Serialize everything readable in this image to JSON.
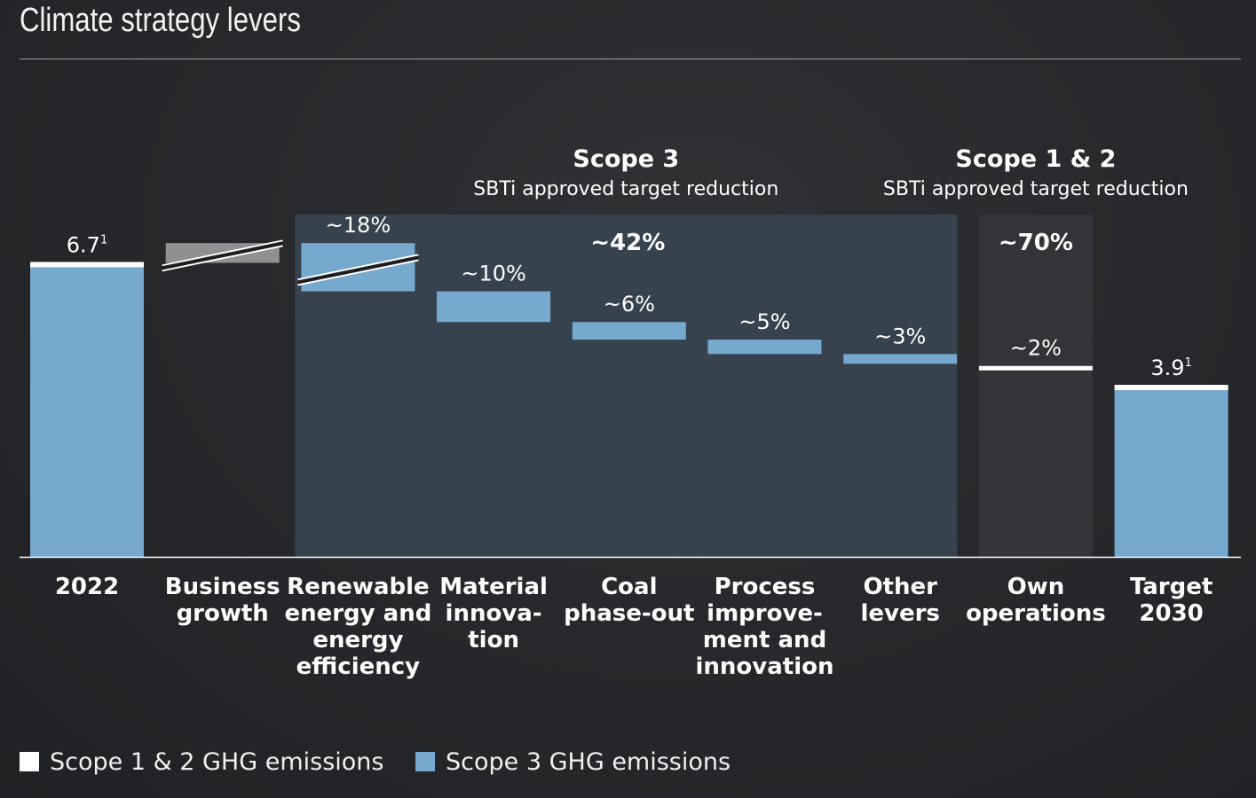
{
  "page": {
    "title": "Climate strategy levers"
  },
  "colors": {
    "scope3": "#77a8cd",
    "scope12": "#ffffff",
    "growth": "#8f9092",
    "scope3_panel": "#36434e",
    "scope12_panel": "#333437",
    "text": "#ffffff"
  },
  "chart_data": {
    "type": "bar",
    "subtype": "waterfall",
    "ylim": [
      0,
      7.8
    ],
    "categories": [
      "2022",
      "Business growth",
      "Renewable energy and energy efficiency",
      "Material innovation",
      "Coal phase-out",
      "Process improvement and innovation",
      "Other levers",
      "Own operations",
      "Target 2030"
    ],
    "category_label_lines": [
      [
        "2022"
      ],
      [
        "Business",
        "growth"
      ],
      [
        "Renewable",
        "energy and",
        "energy",
        "efficiency"
      ],
      [
        "Material",
        "innova-",
        "tion"
      ],
      [
        "Coal",
        "phase-out"
      ],
      [
        "Process",
        "improve-",
        "ment and",
        "innovation"
      ],
      [
        "Other",
        "levers"
      ],
      [
        "Own",
        "operations"
      ],
      [
        "Target",
        "2030"
      ]
    ],
    "bars": [
      {
        "category": "2022",
        "kind": "total",
        "start": 0,
        "end": 6.7,
        "label": "6.7",
        "footnote": "1"
      },
      {
        "category": "Business growth",
        "kind": "increase",
        "start": 6.7,
        "end": 7.15,
        "label": "",
        "broken": true
      },
      {
        "category": "Renewable energy and energy efficiency",
        "kind": "decrease",
        "start": 7.15,
        "end": 6.05,
        "label": "~18%",
        "broken": true
      },
      {
        "category": "Material innovation",
        "kind": "decrease",
        "start": 6.05,
        "end": 5.35,
        "label": "~10%"
      },
      {
        "category": "Coal phase-out",
        "kind": "decrease",
        "start": 5.35,
        "end": 4.95,
        "label": "~6%"
      },
      {
        "category": "Process improvement and innovation",
        "kind": "decrease",
        "start": 4.95,
        "end": 4.62,
        "label": "~5%"
      },
      {
        "category": "Other levers",
        "kind": "decrease",
        "start": 4.62,
        "end": 4.4,
        "label": "~3%"
      },
      {
        "category": "Own operations",
        "kind": "scope12",
        "start": 4.35,
        "end": 4.27,
        "label": "~2%"
      },
      {
        "category": "Target 2030",
        "kind": "total",
        "start": 0,
        "end": 3.9,
        "label": "3.9",
        "footnote": "1"
      }
    ],
    "groups": [
      {
        "title": "Scope 3",
        "subtitle": "SBTi approved target reduction",
        "reduction": "~42%",
        "from_index": 2,
        "to_index": 6
      },
      {
        "title": "Scope 1 & 2",
        "subtitle": "SBTi approved target reduction",
        "reduction": "~70%",
        "from_index": 7,
        "to_index": 7
      }
    ],
    "legend": [
      {
        "label": "Scope 1 & 2 GHG emissions",
        "color": "#ffffff"
      },
      {
        "label": "Scope 3 GHG emissions",
        "color": "#77a8cd"
      }
    ],
    "legend_position": "bottom-left",
    "grid": false
  }
}
